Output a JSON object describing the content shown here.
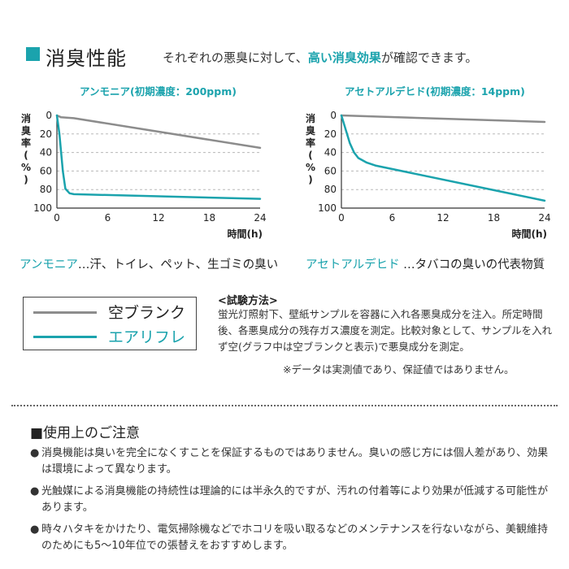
{
  "header": {
    "title": "消臭性能",
    "subtitle_pre": "それぞれの悪臭に対して、",
    "subtitle_highlight": "高い消臭効果",
    "subtitle_post": "が確認できます。"
  },
  "colors": {
    "accent": "#1ba3ad",
    "blank": "#8c8c8c",
    "airfre": "#1ba3ad",
    "text": "#222222"
  },
  "chart_data": [
    {
      "type": "line",
      "title": "アンモニア(初期濃度：200ppm)",
      "ylabel": "消臭率(%)",
      "xlabel": "時間(h)",
      "xlim": [
        0,
        24
      ],
      "ylim": [
        0,
        100
      ],
      "y_inverted": true,
      "x_ticks": [
        "0",
        "6",
        "12",
        "18",
        "24"
      ],
      "y_ticks": [
        "0",
        "20",
        "40",
        "60",
        "80",
        "100"
      ],
      "grid": "horizontal dashed",
      "series": [
        {
          "name": "空ブランク",
          "x": [
            0,
            0.5,
            2,
            24
          ],
          "y": [
            0,
            2,
            3,
            35
          ]
        },
        {
          "name": "エアリフレ",
          "x": [
            0,
            0.3,
            0.7,
            1,
            1.5,
            2,
            24
          ],
          "y": [
            0,
            20,
            60,
            79,
            84,
            85,
            90
          ]
        }
      ]
    },
    {
      "type": "line",
      "title": "アセトアルデヒド(初期濃度：14ppm)",
      "ylabel": "消臭率(%)",
      "xlabel": "時間(h)",
      "xlim": [
        0,
        24
      ],
      "ylim": [
        0,
        100
      ],
      "y_inverted": true,
      "x_ticks": [
        "0",
        "6",
        "12",
        "18",
        "24"
      ],
      "y_ticks": [
        "0",
        "20",
        "40",
        "60",
        "80",
        "100"
      ],
      "grid": "horizontal dashed",
      "series": [
        {
          "name": "空ブランク",
          "x": [
            0,
            24
          ],
          "y": [
            0,
            7
          ]
        },
        {
          "name": "エアリフレ",
          "x": [
            0,
            0.5,
            1,
            1.5,
            2,
            3,
            4,
            24
          ],
          "y": [
            0,
            15,
            30,
            40,
            46,
            51,
            54,
            92
          ]
        }
      ]
    }
  ],
  "descriptions": {
    "left_name": "アンモニア",
    "left_text": "…汗、トイレ、ペット、生ゴミの臭い",
    "right_name": "アセトアルデヒド",
    "right_text": " …タバコの臭いの代表物質"
  },
  "legend": {
    "blank": "空ブランク",
    "airfre": "エアリフレ"
  },
  "method": {
    "title": "<試験方法>",
    "body": "蛍光灯照射下、壁紙サンプルを容器に入れ各悪臭成分を注入。所定時間後、各悪臭成分の残存ガス濃度を測定。比較対象として、サンプルを入れず空(グラフ中は空ブランクと表示)で悪臭成分を測定。",
    "note": "※データは実測値であり、保証値ではありません。"
  },
  "caution": {
    "title": "■使用上のご注意",
    "bullet": "●",
    "items": [
      "消臭機能は臭いを完全になくすことを保証するものではありません。臭いの感じ方には個人差があり、効果は環境によって異なります。",
      "光触媒による消臭機能の持続性は理論的には半永久的ですが、汚れの付着等により効果が低減する可能性があります。",
      "時々ハタキをかけたり、電気掃除機などでホコリを吸い取るなどのメンテナンスを行ないながら、美観維持のためにも5〜10年位での張替えをおすすめします。"
    ]
  }
}
